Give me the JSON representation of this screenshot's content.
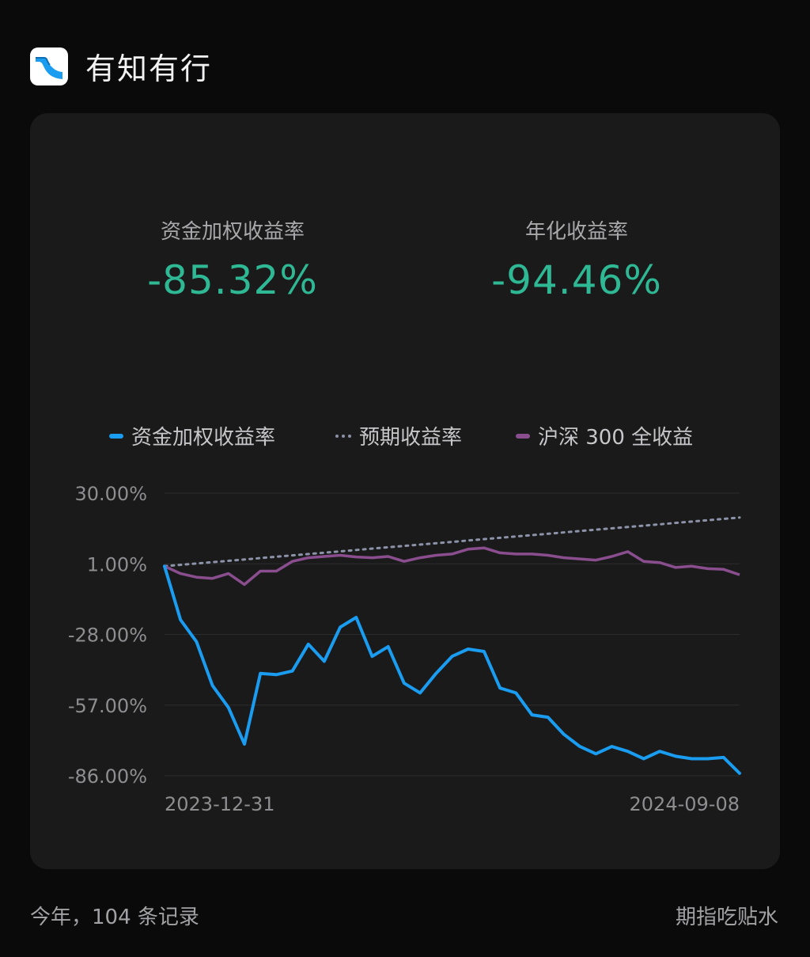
{
  "app": {
    "title": "有知有行"
  },
  "stats": [
    {
      "label": "资金加权收益率",
      "value": "-85.32%"
    },
    {
      "label": "年化收益率",
      "value": "-94.46%"
    }
  ],
  "colors": {
    "blue": "#1a9cf0",
    "dotted": "#8c93a8",
    "purple": "#8a4e8f",
    "green": "#2fb894"
  },
  "chart_data": {
    "type": "line",
    "x_start": "2023-12-31",
    "x_end": "2024-09-08",
    "x_tick_labels": [
      "2023-12-31",
      "2024-09-08"
    ],
    "y_ticks": [
      "30.00%",
      "1.00%",
      "-28.00%",
      "-57.00%",
      "-86.00%"
    ],
    "ylim": [
      -86,
      30
    ],
    "grid": true,
    "legend_position": "top",
    "series": [
      {
        "name": "资金加权收益率",
        "style": "solid",
        "values": [
          0,
          -22,
          -31,
          -49,
          -58,
          -73,
          -44,
          -44.5,
          -43,
          -32,
          -39,
          -25,
          -21,
          -37,
          -33,
          -48,
          -52,
          -44,
          -37,
          -34,
          -35,
          -50,
          -52,
          -61,
          -62,
          -69,
          -74,
          -77,
          -74,
          -76,
          -79,
          -76,
          -78,
          -79,
          -79,
          -78.5,
          -85
        ]
      },
      {
        "name": "预期收益率",
        "style": "dotted",
        "values": [
          0,
          20
        ]
      },
      {
        "name": "沪深 300 全收益",
        "style": "solid",
        "values": [
          0,
          -3,
          -4.5,
          -5,
          -3,
          -7.5,
          -2,
          -2,
          2,
          3.5,
          4,
          4.5,
          3.8,
          3.5,
          4,
          2,
          3.5,
          4.5,
          5,
          7,
          7.5,
          5.5,
          5,
          5,
          4.5,
          3.5,
          3,
          2.5,
          4,
          6,
          2,
          1.5,
          -0.5,
          0,
          -1,
          -1.3,
          -3.5
        ]
      }
    ]
  },
  "footer": {
    "left": "今年，104 条记录",
    "right": "期指吃贴水"
  }
}
